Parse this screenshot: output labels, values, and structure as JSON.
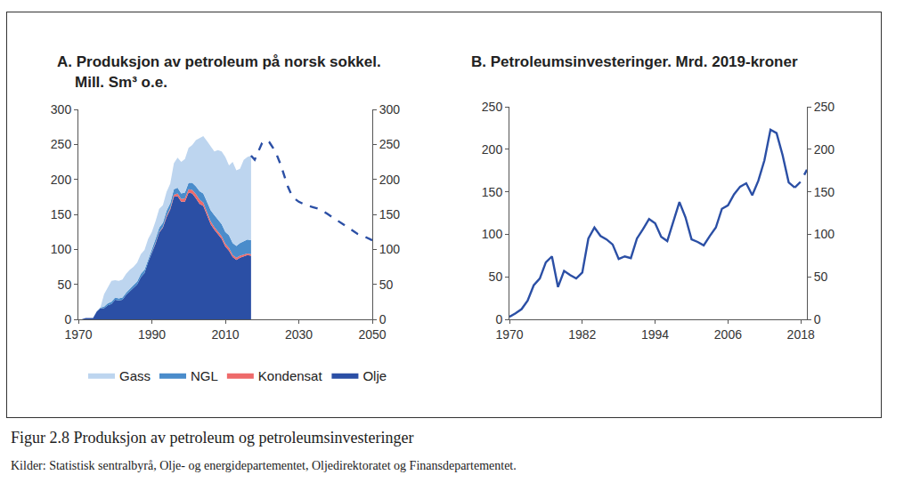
{
  "chart_data": [
    {
      "type": "area",
      "title": "A. Produksjon av petroleum på norsk sokkel.",
      "subtitle": "Mill. Sm³ o.e.",
      "stacked": true,
      "legend": "bottom",
      "x": [
        1971,
        1972,
        1973,
        1974,
        1975,
        1976,
        1977,
        1978,
        1979,
        1980,
        1981,
        1982,
        1983,
        1984,
        1985,
        1986,
        1987,
        1988,
        1989,
        1990,
        1991,
        1992,
        1993,
        1994,
        1995,
        1996,
        1997,
        1998,
        1999,
        2000,
        2001,
        2002,
        2003,
        2004,
        2005,
        2006,
        2007,
        2008,
        2009,
        2010,
        2011,
        2012,
        2013,
        2014,
        2015,
        2016,
        2017
      ],
      "series": [
        {
          "name": "Olje",
          "type": "area",
          "color": "#2b4fa5",
          "values": [
            0.4,
            1.9,
            1.9,
            2,
            11,
            16,
            16,
            20,
            22,
            28,
            27,
            28,
            35,
            40,
            45,
            50,
            60,
            66,
            82,
            95,
            108,
            124,
            131,
            146,
            157,
            175,
            176,
            168,
            168,
            181,
            180,
            173,
            165,
            162,
            148,
            136,
            128,
            122,
            115,
            104,
            98,
            89,
            85,
            88,
            90,
            92,
            91
          ]
        },
        {
          "name": "Kondensat",
          "type": "area",
          "color": "#ee6a6a",
          "values": [
            0,
            0,
            0,
            0,
            0,
            0,
            0,
            0,
            0,
            0,
            0,
            0,
            0,
            0,
            0,
            0,
            0,
            0,
            0,
            0,
            1,
            1,
            1,
            2,
            2,
            3,
            4,
            4,
            5,
            5,
            5,
            6,
            6,
            5,
            5,
            4,
            4,
            4,
            4,
            4,
            4,
            3,
            3,
            3,
            3,
            2,
            2
          ]
        },
        {
          "name": "NGL",
          "type": "area",
          "color": "#4a8ccb",
          "values": [
            0,
            0,
            0,
            0,
            0.5,
            1,
            2,
            3,
            3,
            3,
            3,
            3,
            3,
            4,
            4,
            4,
            5,
            5,
            5,
            5,
            6,
            6,
            6,
            7,
            7,
            8,
            8,
            8,
            8,
            9,
            10,
            11,
            12,
            13,
            15,
            16,
            17,
            17,
            17,
            17,
            18,
            17,
            17,
            18,
            19,
            20,
            20
          ]
        },
        {
          "name": "Gass",
          "type": "area",
          "color": "#bdd5ef",
          "values": [
            0,
            0,
            0,
            0,
            0,
            0.3,
            18,
            22,
            30,
            25,
            25,
            26,
            27,
            27,
            26,
            27,
            28,
            28,
            28,
            25,
            25,
            27,
            25,
            27,
            28,
            37,
            43,
            45,
            48,
            50,
            54,
            66,
            76,
            82,
            87,
            92,
            91,
            99,
            104,
            107,
            100,
            116,
            108,
            106,
            116,
            118,
            121
          ]
        },
        {
          "type": "line",
          "line_style": "dashed",
          "color": "#2b4fa5",
          "x": [
            2017,
            2018,
            2019,
            2020,
            2021,
            2022,
            2023,
            2024,
            2025,
            2026,
            2027,
            2028,
            2029,
            2030,
            2032,
            2034,
            2036,
            2038,
            2040,
            2042,
            2044,
            2046,
            2048,
            2050
          ],
          "values": [
            234,
            228,
            240,
            252,
            256,
            253,
            245,
            235,
            222,
            205,
            190,
            178,
            172,
            168,
            163,
            160,
            157,
            150,
            143,
            136,
            128,
            122,
            118,
            113
          ]
        }
      ],
      "xlim": [
        1970,
        2050
      ],
      "xticks": [
        1970,
        1990,
        2010,
        2030,
        2050
      ],
      "ylim": [
        0,
        300
      ],
      "yticks": [
        0,
        50,
        100,
        150,
        200,
        250,
        300
      ],
      "y2lim": [
        0,
        300
      ],
      "y2ticks": [
        0,
        50,
        100,
        150,
        200,
        250,
        300
      ],
      "grid": false
    },
    {
      "type": "line",
      "title": "B. Petroleumsinvesteringer. Mrd. 2019-kroner",
      "x": [
        1970,
        1971,
        1972,
        1973,
        1974,
        1975,
        1976,
        1977,
        1978,
        1979,
        1980,
        1981,
        1982,
        1983,
        1984,
        1985,
        1986,
        1987,
        1988,
        1989,
        1990,
        1991,
        1992,
        1993,
        1994,
        1995,
        1996,
        1997,
        1998,
        1999,
        2000,
        2001,
        2002,
        2003,
        2004,
        2005,
        2006,
        2007,
        2008,
        2009,
        2010,
        2011,
        2012,
        2013,
        2014,
        2015,
        2016,
        2017
      ],
      "series": [
        {
          "type": "line",
          "line_style": "solid",
          "color": "#2b4fa5",
          "values": [
            3,
            7,
            12,
            22,
            40,
            48,
            67,
            74,
            38,
            57,
            52,
            48,
            55,
            95,
            108,
            98,
            94,
            88,
            71,
            74,
            72,
            95,
            106,
            118,
            113,
            97,
            92,
            115,
            138,
            120,
            94,
            91,
            87,
            98,
            108,
            130,
            134,
            147,
            156,
            160,
            146,
            163,
            187,
            223,
            219,
            193,
            161,
            155
          ]
        },
        {
          "type": "line",
          "line_style": "dashed",
          "color": "#2b4fa5",
          "x": [
            2017,
            2018,
            2019
          ],
          "values": [
            155,
            162,
            176
          ]
        }
      ],
      "xlim": [
        1970,
        2019
      ],
      "xticks": [
        1970,
        1982,
        1994,
        2006,
        2018
      ],
      "ylim": [
        0,
        250
      ],
      "yticks": [
        0,
        50,
        100,
        150,
        200,
        250
      ],
      "y2lim": [
        0,
        250
      ],
      "y2ticks": [
        0,
        50,
        100,
        150,
        200,
        250
      ],
      "grid": false
    }
  ],
  "caption": "Figur 2.8  Produksjon av petroleum og petroleumsinvesteringer",
  "source": "Kilder: Statistisk sentralbyrå, Olje- og energidepartementet, Oljedirektoratet og Finansdepartementet."
}
